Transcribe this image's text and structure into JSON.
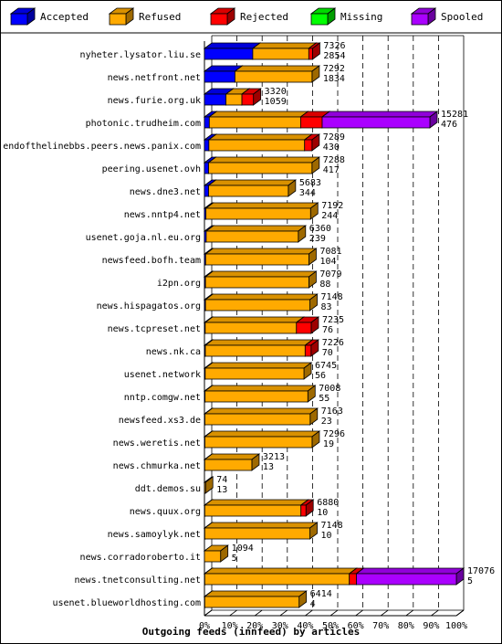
{
  "colors": {
    "accepted": "#0000ff",
    "refused": "#ffaa00",
    "rejected": "#ff0000",
    "missing": "#00ff00",
    "spooled": "#aa00ff"
  },
  "legend": [
    {
      "key": "accepted",
      "label": "Accepted"
    },
    {
      "key": "refused",
      "label": "Refused"
    },
    {
      "key": "rejected",
      "label": "Rejected"
    },
    {
      "key": "missing",
      "label": "Missing"
    },
    {
      "key": "spooled",
      "label": "Spooled"
    }
  ],
  "chart_data": {
    "type": "bar",
    "orientation": "horizontal",
    "stacked": true,
    "title": "",
    "xlabel": "Outgoing feeds (innfeed) by articles",
    "xlim": [
      0,
      100
    ],
    "x_ticks": [
      "0%",
      "10%",
      "20%",
      "30%",
      "40%",
      "50%",
      "60%",
      "70%",
      "80%",
      "90%",
      "100%"
    ],
    "grid": "vertical dashed",
    "legend_position": "top",
    "max_offered": 17076,
    "series_order": [
      "accepted",
      "refused",
      "rejected",
      "missing",
      "spooled"
    ],
    "rows": [
      {
        "host": "nyheter.lysator.liu.se",
        "offered": "7326",
        "spooled": "2854",
        "accepted": 3275,
        "refused": 3798,
        "rejected": 253,
        "missing": 0,
        "spooled_count": 0
      },
      {
        "host": "news.netfront.net",
        "offered": "7292",
        "spooled": "1834",
        "accepted": 2068,
        "refused": 5224,
        "rejected": 0,
        "missing": 0,
        "spooled_count": 0
      },
      {
        "host": "news.furie.org.uk",
        "offered": "3320",
        "spooled": "1059",
        "accepted": 1460,
        "refused": 1080,
        "rejected": 780,
        "missing": 0,
        "spooled_count": 0
      },
      {
        "host": "photonic.trudheim.com",
        "offered": "15281",
        "spooled": "476",
        "accepted": 330,
        "refused": 6190,
        "rejected": 1461,
        "missing": 0,
        "spooled_count": 7300
      },
      {
        "host": "endofthelinebbs.peers.news.panix.com",
        "offered": "7289",
        "spooled": "430",
        "accepted": 300,
        "refused": 6489,
        "rejected": 500,
        "missing": 0,
        "spooled_count": 0
      },
      {
        "host": "peering.usenet.ovh",
        "offered": "7288",
        "spooled": "417",
        "accepted": 280,
        "refused": 7008,
        "rejected": 0,
        "missing": 0,
        "spooled_count": 0
      },
      {
        "host": "news.dne3.net",
        "offered": "5683",
        "spooled": "344",
        "accepted": 280,
        "refused": 5403,
        "rejected": 0,
        "missing": 0,
        "spooled_count": 0
      },
      {
        "host": "news.nntp4.net",
        "offered": "7192",
        "spooled": "244",
        "accepted": 100,
        "refused": 7092,
        "rejected": 0,
        "missing": 0,
        "spooled_count": 0
      },
      {
        "host": "usenet.goja.nl.eu.org",
        "offered": "6360",
        "spooled": "239",
        "accepted": 120,
        "refused": 6240,
        "rejected": 0,
        "missing": 0,
        "spooled_count": 0
      },
      {
        "host": "newsfeed.bofh.team",
        "offered": "7081",
        "spooled": "104",
        "accepted": 80,
        "refused": 7001,
        "rejected": 0,
        "missing": 0,
        "spooled_count": 0
      },
      {
        "host": "i2pn.org",
        "offered": "7079",
        "spooled": "88",
        "accepted": 70,
        "refused": 7009,
        "rejected": 0,
        "missing": 0,
        "spooled_count": 0
      },
      {
        "host": "news.hispagatos.org",
        "offered": "7148",
        "spooled": "83",
        "accepted": 70,
        "refused": 7078,
        "rejected": 0,
        "missing": 0,
        "spooled_count": 0
      },
      {
        "host": "news.tcpreset.net",
        "offered": "7235",
        "spooled": "76",
        "accepted": 50,
        "refused": 6185,
        "rejected": 1000,
        "missing": 0,
        "spooled_count": 0
      },
      {
        "host": "news.nk.ca",
        "offered": "7226",
        "spooled": "70",
        "accepted": 60,
        "refused": 6766,
        "rejected": 400,
        "missing": 0,
        "spooled_count": 0
      },
      {
        "host": "usenet.network",
        "offered": "6745",
        "spooled": "56",
        "accepted": 50,
        "refused": 6695,
        "rejected": 0,
        "missing": 0,
        "spooled_count": 0
      },
      {
        "host": "nntp.comgw.net",
        "offered": "7008",
        "spooled": "55",
        "accepted": 40,
        "refused": 6968,
        "rejected": 0,
        "missing": 0,
        "spooled_count": 0
      },
      {
        "host": "newsfeed.xs3.de",
        "offered": "7163",
        "spooled": "23",
        "accepted": 30,
        "refused": 7133,
        "rejected": 0,
        "missing": 0,
        "spooled_count": 0
      },
      {
        "host": "news.weretis.net",
        "offered": "7296",
        "spooled": "19",
        "accepted": 30,
        "refused": 7266,
        "rejected": 0,
        "missing": 0,
        "spooled_count": 0
      },
      {
        "host": "news.chmurka.net",
        "offered": "3213",
        "spooled": "13",
        "accepted": 20,
        "refused": 3193,
        "rejected": 0,
        "missing": 0,
        "spooled_count": 0
      },
      {
        "host": "ddt.demos.su",
        "offered": "74",
        "spooled": "13",
        "accepted": 0,
        "refused": 74,
        "rejected": 0,
        "missing": 0,
        "spooled_count": 0
      },
      {
        "host": "news.quux.org",
        "offered": "6880",
        "spooled": "10",
        "accepted": 20,
        "refused": 6520,
        "rejected": 340,
        "missing": 0,
        "spooled_count": 0
      },
      {
        "host": "news.samoylyk.net",
        "offered": "7148",
        "spooled": "10",
        "accepted": 20,
        "refused": 7128,
        "rejected": 0,
        "missing": 0,
        "spooled_count": 0
      },
      {
        "host": "news.corradoroberto.it",
        "offered": "1094",
        "spooled": "5",
        "accepted": 0,
        "refused": 1094,
        "rejected": 0,
        "missing": 0,
        "spooled_count": 0
      },
      {
        "host": "news.tnetconsulting.net",
        "offered": "17076",
        "spooled": "5",
        "accepted": 20,
        "refused": 9800,
        "rejected": 480,
        "missing": 0,
        "spooled_count": 6776
      },
      {
        "host": "usenet.blueworldhosting.com",
        "offered": "6414",
        "spooled": "4",
        "accepted": 20,
        "refused": 6394,
        "rejected": 0,
        "missing": 0,
        "spooled_count": 0
      }
    ]
  }
}
